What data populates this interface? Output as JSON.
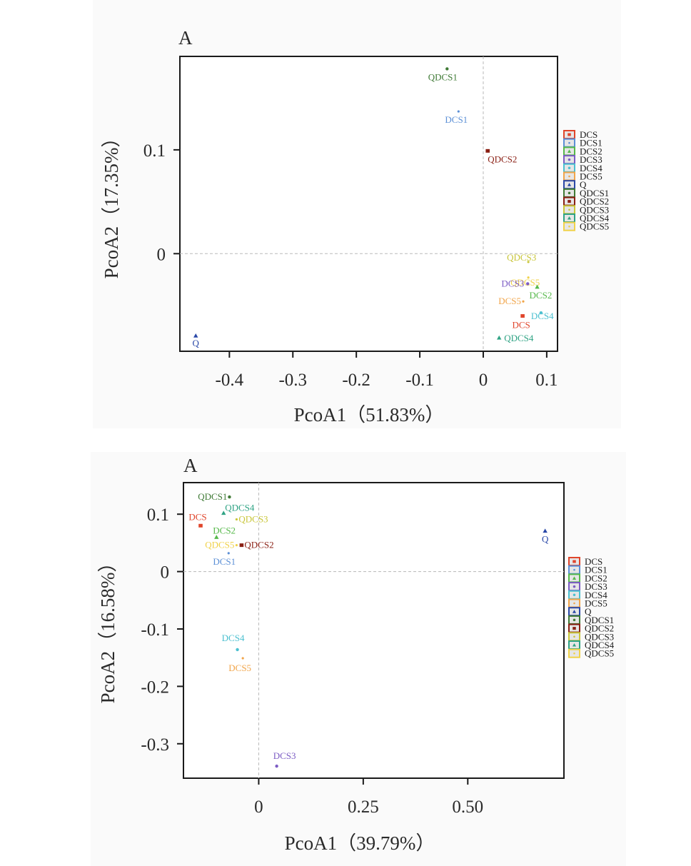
{
  "series_colors": {
    "DCS": "#e0452b",
    "DCS1": "#5b8fd6",
    "DCS2": "#56b94a",
    "DCS3": "#7c5cc4",
    "DCS4": "#4cc0d0",
    "DCS5": "#f1a54a",
    "Q": "#2a48a8",
    "QDCS1": "#3f7a35",
    "QDCS2": "#8a1f14",
    "QDCS3": "#c9c63a",
    "QDCS4": "#2fa384",
    "QDCS5": "#f0d24a"
  },
  "chart_data": [
    {
      "type": "scatter",
      "panel_letter": "A",
      "xlabel": "PcoA1（51.83%）",
      "ylabel": "PcoA2（17.35%）",
      "xlim": [
        -0.478,
        0.117
      ],
      "ylim": [
        -0.094,
        0.19
      ],
      "xticks": [
        -0.4,
        -0.3,
        -0.2,
        -0.1,
        0,
        0.1
      ],
      "xtick_labels": [
        "-0.4",
        "-0.3",
        "-0.2",
        "-0.1",
        "0",
        "0.1"
      ],
      "yticks": [
        0,
        0.1
      ],
      "ytick_labels": [
        "0",
        "0.1"
      ],
      "reference_lines": {
        "x": 0,
        "y": 0
      },
      "grid": false,
      "legend_position": "right",
      "legend": [
        "DCS",
        "DCS1",
        "DCS2",
        "DCS3",
        "DCS4",
        "DCS5",
        "Q",
        "QDCS1",
        "QDCS2",
        "QDCS3",
        "QDCS4",
        "QDCS5"
      ],
      "points": [
        {
          "name": "QDCS1",
          "x": -0.057,
          "y": 0.178
        },
        {
          "name": "DCS1",
          "x": -0.039,
          "y": 0.137
        },
        {
          "name": "QDCS2",
          "x": 0.007,
          "y": 0.099
        },
        {
          "name": "QDCS3",
          "x": 0.071,
          "y": -0.008
        },
        {
          "name": "QDCS5",
          "x": 0.071,
          "y": -0.023
        },
        {
          "name": "DCS3",
          "x": 0.07,
          "y": -0.029
        },
        {
          "name": "DCS2",
          "x": 0.085,
          "y": -0.032
        },
        {
          "name": "DCS5",
          "x": 0.063,
          "y": -0.046
        },
        {
          "name": "DCS4",
          "x": 0.091,
          "y": -0.057
        },
        {
          "name": "DCS",
          "x": 0.062,
          "y": -0.06
        },
        {
          "name": "QDCS4",
          "x": 0.025,
          "y": -0.081
        },
        {
          "name": "Q",
          "x": -0.453,
          "y": -0.079
        }
      ]
    },
    {
      "type": "scatter",
      "panel_letter": "A",
      "xlabel": "PcoA1（39.79%）",
      "ylabel": "PcoA2（16.58%）",
      "xlim": [
        -0.18,
        0.73
      ],
      "ylim": [
        -0.36,
        0.155
      ],
      "xticks": [
        0,
        0.25,
        0.5
      ],
      "xtick_labels": [
        "0",
        "0.25",
        "0.50"
      ],
      "yticks": [
        -0.3,
        -0.2,
        -0.1,
        0,
        0.1
      ],
      "ytick_labels": [
        "-0.3",
        "-0.2",
        "-0.1",
        "0",
        "0.1"
      ],
      "reference_lines": {
        "x": 0,
        "y": 0
      },
      "grid": false,
      "legend_position": "right",
      "legend": [
        "DCS",
        "DCS1",
        "DCS2",
        "DCS3",
        "DCS4",
        "DCS5",
        "Q",
        "QDCS1",
        "QDCS2",
        "QDCS3",
        "QDCS4",
        "QDCS5"
      ],
      "points": [
        {
          "name": "QDCS1",
          "x": -0.07,
          "y": 0.13
        },
        {
          "name": "QDCS4",
          "x": -0.084,
          "y": 0.102
        },
        {
          "name": "QDCS3",
          "x": -0.053,
          "y": 0.091
        },
        {
          "name": "DCS",
          "x": -0.139,
          "y": 0.08
        },
        {
          "name": "DCS2",
          "x": -0.101,
          "y": 0.06
        },
        {
          "name": "QDCS5",
          "x": -0.053,
          "y": 0.046
        },
        {
          "name": "QDCS2",
          "x": -0.041,
          "y": 0.046
        },
        {
          "name": "DCS1",
          "x": -0.072,
          "y": 0.032
        },
        {
          "name": "DCS4",
          "x": -0.051,
          "y": -0.136
        },
        {
          "name": "DCS5",
          "x": -0.038,
          "y": -0.151
        },
        {
          "name": "DCS3",
          "x": 0.043,
          "y": -0.339
        },
        {
          "name": "Q",
          "x": 0.685,
          "y": 0.071
        }
      ]
    }
  ]
}
